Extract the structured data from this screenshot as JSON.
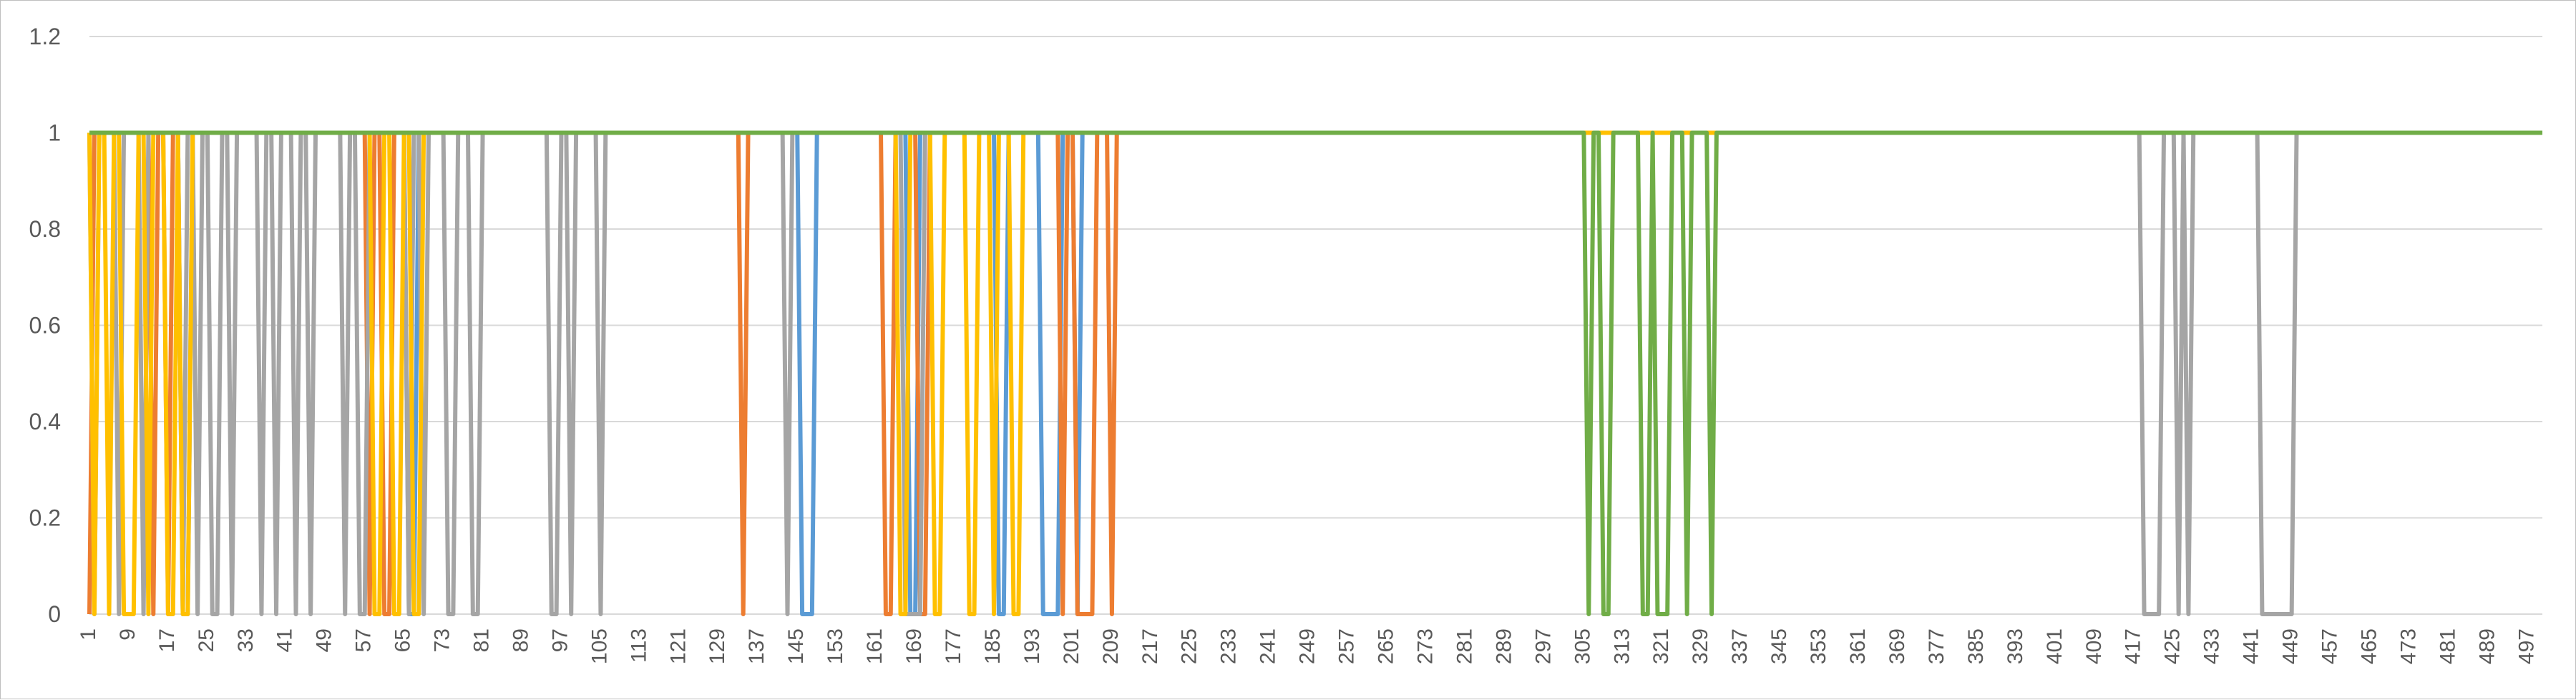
{
  "chart_data": {
    "type": "line",
    "title": "",
    "xlabel": "",
    "ylabel": "",
    "grid": true,
    "legend": "none",
    "x_range": [
      1,
      500
    ],
    "x_tick_step": 8,
    "ylim": [
      0,
      1.2
    ],
    "y_ticks": [
      0,
      0.2,
      0.4,
      0.6,
      0.8,
      1,
      1.2
    ],
    "y_tick_labels": [
      "0",
      "0.2",
      "0.4",
      "0.6",
      "0.8",
      "1",
      "1.2"
    ],
    "baseline": 1,
    "series": [
      {
        "color": "#5b9bd5",
        "zero_segments": [
          [
            20,
            21
          ],
          [
            66,
            67
          ],
          [
            146,
            148
          ],
          [
            168,
            169
          ],
          [
            186,
            187
          ],
          [
            195,
            198
          ],
          [
            202,
            202
          ]
        ]
      },
      {
        "color": "#ed7d31",
        "zero_segments": [
          [
            1,
            1
          ],
          [
            14,
            14
          ],
          [
            17,
            17
          ],
          [
            58,
            58
          ],
          [
            61,
            62
          ],
          [
            134,
            134
          ],
          [
            163,
            164
          ],
          [
            170,
            171
          ],
          [
            199,
            199
          ],
          [
            202,
            205
          ],
          [
            209,
            209
          ]
        ]
      },
      {
        "color": "#a5a5a5",
        "zero_segments": [
          [
            2,
            2
          ],
          [
            7,
            7
          ],
          [
            12,
            12
          ],
          [
            20,
            20
          ],
          [
            23,
            23
          ],
          [
            26,
            27
          ],
          [
            30,
            30
          ],
          [
            36,
            36
          ],
          [
            39,
            39
          ],
          [
            43,
            43
          ],
          [
            46,
            46
          ],
          [
            53,
            53
          ],
          [
            56,
            57
          ],
          [
            66,
            66
          ],
          [
            69,
            69
          ],
          [
            74,
            75
          ],
          [
            79,
            80
          ],
          [
            95,
            96
          ],
          [
            99,
            99
          ],
          [
            105,
            105
          ],
          [
            143,
            143
          ],
          [
            167,
            170
          ],
          [
            419,
            422
          ],
          [
            426,
            426
          ],
          [
            428,
            428
          ],
          [
            443,
            449
          ]
        ]
      },
      {
        "color": "#ffc000",
        "zero_segments": [
          [
            2,
            2
          ],
          [
            5,
            5
          ],
          [
            8,
            10
          ],
          [
            13,
            13
          ],
          [
            17,
            18
          ],
          [
            20,
            21
          ],
          [
            59,
            60
          ],
          [
            63,
            64
          ],
          [
            67,
            68
          ],
          [
            166,
            167
          ],
          [
            173,
            174
          ],
          [
            180,
            181
          ],
          [
            185,
            185
          ],
          [
            189,
            190
          ]
        ]
      },
      {
        "color": "#70ad47",
        "zero_segments": [
          [
            306,
            306
          ],
          [
            309,
            310
          ],
          [
            317,
            318
          ],
          [
            320,
            322
          ],
          [
            326,
            326
          ],
          [
            331,
            331
          ]
        ]
      }
    ]
  }
}
